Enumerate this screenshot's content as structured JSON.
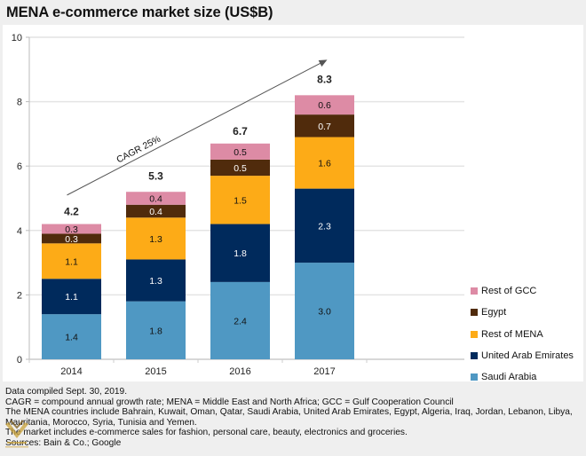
{
  "title": "MENA e-commerce market size (US$B)",
  "chart_data": {
    "type": "bar",
    "stacked": true,
    "title": "MENA e-commerce market size (US$B)",
    "xlabel": "",
    "ylabel": "",
    "ylim": [
      0,
      10
    ],
    "yticks": [
      0,
      2,
      4,
      6,
      8,
      10
    ],
    "grid": true,
    "legend_position": "right",
    "categories": [
      "2014",
      "2015",
      "2016",
      "2017"
    ],
    "series": [
      {
        "name": "Saudi Arabia",
        "color": "#4f98c3",
        "label_color": "#111111",
        "values": [
          1.4,
          1.8,
          2.4,
          3.0
        ]
      },
      {
        "name": "United Arab Emirates",
        "color": "#002a5c",
        "label_color": "#ffffff",
        "values": [
          1.1,
          1.3,
          1.8,
          2.3
        ]
      },
      {
        "name": "Rest of MENA",
        "color": "#fdab17",
        "label_color": "#111111",
        "values": [
          1.1,
          1.3,
          1.5,
          1.6
        ]
      },
      {
        "name": "Egypt",
        "color": "#502b0c",
        "label_color": "#ffffff",
        "values": [
          0.3,
          0.4,
          0.5,
          0.7
        ]
      },
      {
        "name": "Rest of GCC",
        "color": "#dd8ba5",
        "label_color": "#111111",
        "values": [
          0.3,
          0.4,
          0.5,
          0.6
        ]
      }
    ],
    "segment_labels": [
      [
        "1.4",
        "1.1",
        "1.1",
        "0.3",
        "0.3"
      ],
      [
        "1.8",
        "1.3",
        "1.3",
        "0.4",
        "0.4"
      ],
      [
        "2.4",
        "1.8",
        "1.5",
        "0.5",
        "0.5"
      ],
      [
        "3.0",
        "2.3",
        "1.6",
        "0.7",
        "0.6"
      ]
    ],
    "totals": [
      4.2,
      5.3,
      6.7,
      8.3
    ],
    "total_labels": [
      "4.2",
      "5.3",
      "6.7",
      "8.3"
    ],
    "annotations": [
      {
        "type": "arrow",
        "text": "CAGR 25%",
        "from": {
          "x": "2014",
          "y": 5.1
        },
        "to": {
          "x": "2017",
          "y": 9.3
        }
      }
    ],
    "legend_order": [
      "Rest of GCC",
      "Egypt",
      "Rest of MENA",
      "United Arab Emirates",
      "Saudi Arabia"
    ]
  },
  "legend": [
    {
      "name": "Rest of GCC",
      "color": "#dd8ba5"
    },
    {
      "name": "Egypt",
      "color": "#502b0c"
    },
    {
      "name": "Rest of MENA",
      "color": "#fdab17"
    },
    {
      "name": "United Arab Emirates",
      "color": "#002a5c"
    },
    {
      "name": "Saudi Arabia",
      "color": "#4f98c3"
    }
  ],
  "footer": {
    "lines": [
      "Data compiled Sept. 30, 2019.",
      "CAGR = compound annual growth rate; MENA = Middle East and North Africa; GCC = Gulf Cooperation Council",
      "The MENA countries include Bahrain, Kuwait, Oman, Qatar, Saudi Arabia, United Arab Emirates, Egypt, Algeria, Iraq, Jordan, Lebanon, Libya,",
      "Mauritania, Morocco, Syria, Tunisia and Yemen.",
      "The market includes e-commerce sales for fashion, personal care, beauty, electronics and groceries.",
      "Sources: Bain & Co.; Google"
    ]
  },
  "icons": {
    "watermark": "watermark-logo-icon"
  }
}
